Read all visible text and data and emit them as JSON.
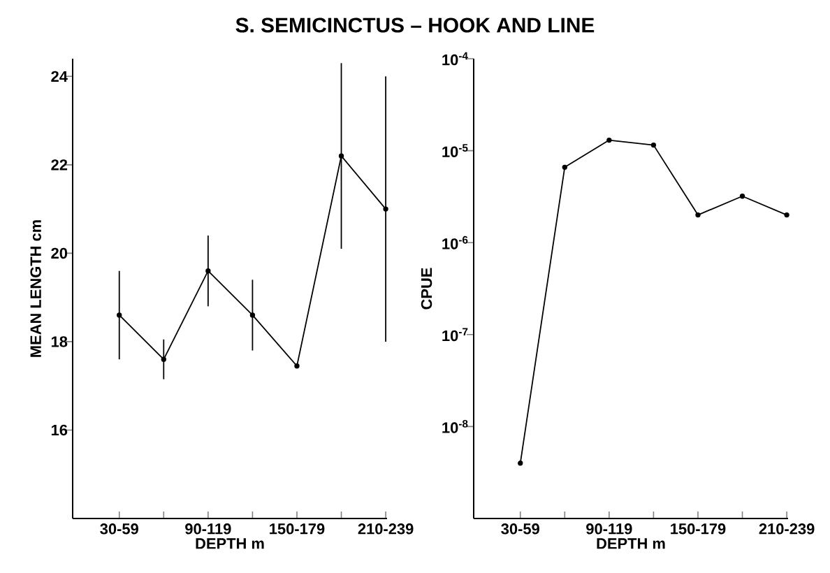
{
  "chart_data": [
    {
      "type": "line",
      "title": "S. SEMICINCTUS – HOOK AND LINE",
      "xlabel": "DEPTH m",
      "ylabel": "MEAN LENGTH cm",
      "categories": [
        "30-59",
        null,
        "90-119",
        null,
        "150-179",
        null,
        "210-239"
      ],
      "values": [
        18.6,
        17.6,
        19.6,
        18.6,
        17.45,
        22.2,
        21.0
      ],
      "errors": [
        1.0,
        0.45,
        0.8,
        0.8,
        null,
        2.1,
        3.0
      ],
      "color": "#000000",
      "marker": "circle",
      "ylim": [
        14,
        24.4
      ],
      "yticks": [
        16,
        18,
        20,
        22,
        24
      ]
    },
    {
      "type": "line",
      "xlabel": "DEPTH m",
      "ylabel": "CPUE",
      "categories": [
        "30-59",
        null,
        "90-119",
        null,
        "150-179",
        null,
        "210-239"
      ],
      "values": [
        4e-09,
        6.6e-06,
        1.3e-05,
        1.15e-05,
        2e-06,
        3.2e-06,
        2e-06
      ],
      "color": "#000000",
      "marker": "circle",
      "log": true,
      "ylim": [
        1e-09,
        0.0001
      ],
      "yticks": [
        {
          "value": 0.0001,
          "label": "10$^{-4}$"
        },
        {
          "value": 1e-05,
          "label": "10$^{-5}$"
        },
        {
          "value": 1e-06,
          "label": "10$^{-6}$"
        },
        {
          "value": 1e-07,
          "label": "10$^{-7}$"
        },
        {
          "value": 1e-08,
          "label": "10$^{-8}$"
        }
      ]
    }
  ]
}
